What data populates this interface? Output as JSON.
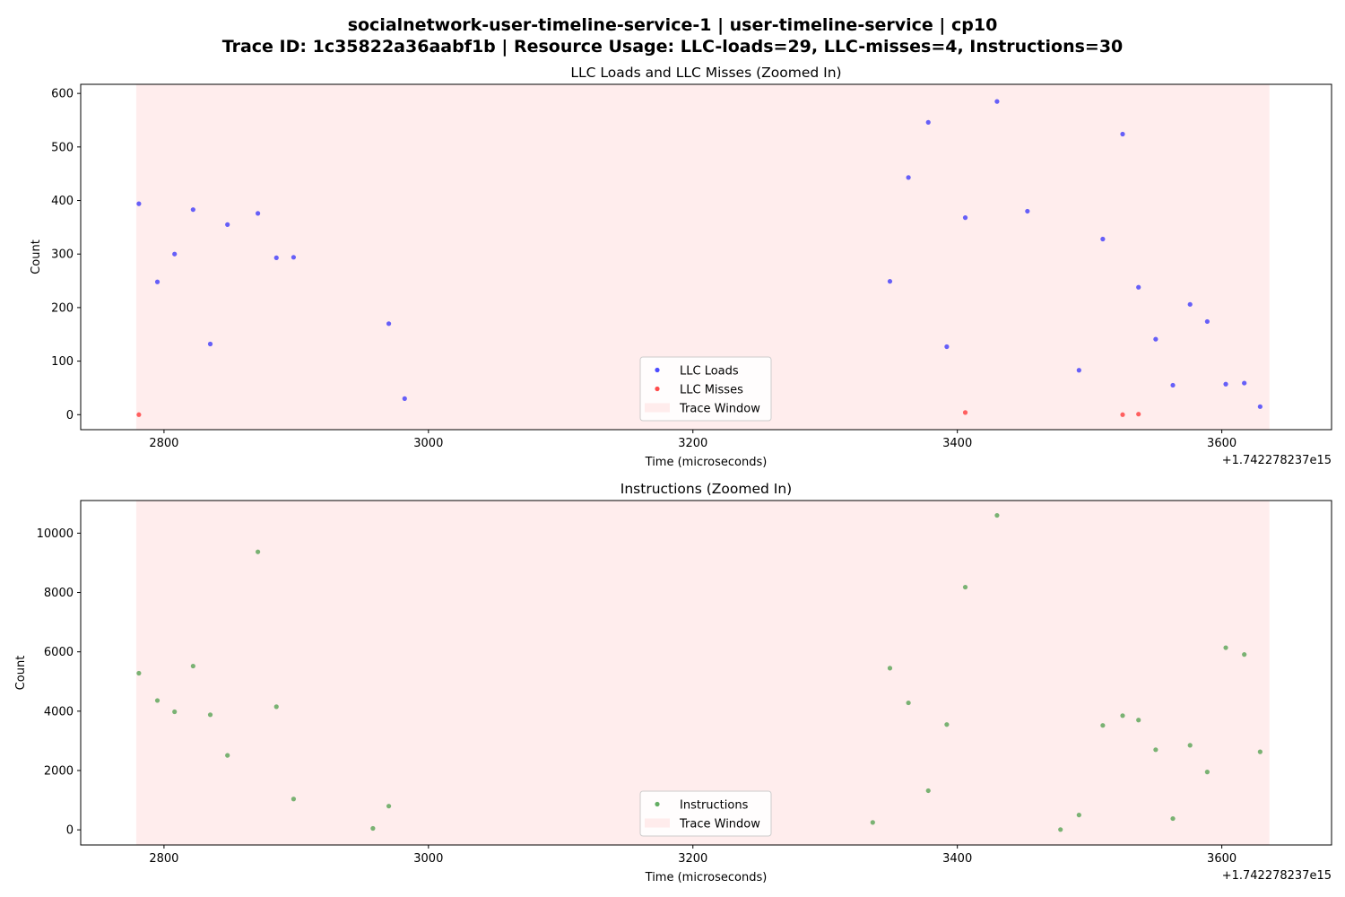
{
  "figure": {
    "title_line1": "socialnetwork-user-timeline-service-1 | user-timeline-service | cp10",
    "title_line2": "Trace ID: 1c35822a36aabf1b | Resource Usage: LLC-loads=29, LLC-misses=4, Instructions=30"
  },
  "chart_data": [
    {
      "type": "scatter",
      "title": "LLC Loads and LLC Misses (Zoomed In)",
      "xlabel": "Time (microseconds)",
      "ylabel": "Count",
      "x_offset_label": "+1.742278237e15",
      "xlim": [
        2737,
        3683
      ],
      "ylim": [
        -28,
        617
      ],
      "xticks": [
        2800,
        3000,
        3200,
        3400,
        3600
      ],
      "yticks": [
        0,
        100,
        200,
        300,
        400,
        500,
        600
      ],
      "grid": false,
      "legend_position": "lower center",
      "trace_window": {
        "label": "Trace Window",
        "x_start": 2779,
        "x_end": 3636,
        "color": "#ffcccc"
      },
      "series": [
        {
          "name": "LLC Loads",
          "color": "#0000ff",
          "points": [
            [
              2781,
              394
            ],
            [
              2795,
              248
            ],
            [
              2808,
              300
            ],
            [
              2822,
              383
            ],
            [
              2835,
              132
            ],
            [
              2848,
              355
            ],
            [
              2871,
              376
            ],
            [
              2885,
              293
            ],
            [
              2898,
              294
            ],
            [
              2970,
              170
            ],
            [
              2982,
              30
            ],
            [
              3349,
              249
            ],
            [
              3363,
              443
            ],
            [
              3378,
              546
            ],
            [
              3392,
              127
            ],
            [
              3406,
              368
            ],
            [
              3430,
              585
            ],
            [
              3453,
              380
            ],
            [
              3492,
              83
            ],
            [
              3510,
              328
            ],
            [
              3525,
              524
            ],
            [
              3537,
              238
            ],
            [
              3550,
              141
            ],
            [
              3563,
              55
            ],
            [
              3576,
              206
            ],
            [
              3589,
              174
            ],
            [
              3603,
              57
            ],
            [
              3617,
              59
            ],
            [
              3629,
              15
            ]
          ]
        },
        {
          "name": "LLC Misses",
          "color": "#ff0000",
          "points": [
            [
              2781,
              0
            ],
            [
              3406,
              4
            ],
            [
              3525,
              0
            ],
            [
              3537,
              1
            ]
          ]
        }
      ]
    },
    {
      "type": "scatter",
      "title": "Instructions (Zoomed In)",
      "xlabel": "Time (microseconds)",
      "ylabel": "Count",
      "x_offset_label": "+1.742278237e15",
      "xlim": [
        2737,
        3683
      ],
      "ylim": [
        -510,
        11100
      ],
      "xticks": [
        2800,
        3000,
        3200,
        3400,
        3600
      ],
      "yticks": [
        0,
        2000,
        4000,
        6000,
        8000,
        10000
      ],
      "grid": false,
      "legend_position": "lower center",
      "trace_window": {
        "label": "Trace Window",
        "x_start": 2779,
        "x_end": 3636,
        "color": "#ffcccc"
      },
      "series": [
        {
          "name": "Instructions",
          "color": "#228b22",
          "points": [
            [
              2781,
              5280
            ],
            [
              2795,
              4360
            ],
            [
              2808,
              3980
            ],
            [
              2822,
              5520
            ],
            [
              2835,
              3880
            ],
            [
              2848,
              2510
            ],
            [
              2871,
              9370
            ],
            [
              2885,
              4150
            ],
            [
              2898,
              1040
            ],
            [
              2958,
              50
            ],
            [
              2970,
              800
            ],
            [
              3336,
              250
            ],
            [
              3349,
              5450
            ],
            [
              3363,
              4280
            ],
            [
              3378,
              1320
            ],
            [
              3392,
              3550
            ],
            [
              3406,
              8180
            ],
            [
              3430,
              10600
            ],
            [
              3478,
              10
            ],
            [
              3492,
              500
            ],
            [
              3510,
              3520
            ],
            [
              3525,
              3850
            ],
            [
              3537,
              3700
            ],
            [
              3550,
              2700
            ],
            [
              3563,
              380
            ],
            [
              3576,
              2850
            ],
            [
              3589,
              1950
            ],
            [
              3603,
              6140
            ],
            [
              3617,
              5910
            ],
            [
              3629,
              2630
            ]
          ]
        }
      ]
    }
  ]
}
